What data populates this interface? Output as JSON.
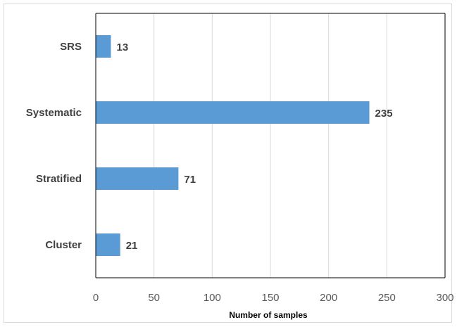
{
  "chart_data": {
    "type": "bar",
    "orientation": "horizontal",
    "categories": [
      "SRS",
      "Systematic",
      "Stratified",
      "Cluster"
    ],
    "values": [
      13,
      235,
      71,
      21
    ],
    "title": "",
    "xlabel": "Number of samples",
    "ylabel": "",
    "xlim": [
      0,
      300
    ],
    "xticks": [
      0,
      50,
      100,
      150,
      200,
      250,
      300
    ],
    "grid": true,
    "legend": "none",
    "bar_color": "#5b9bd5"
  }
}
